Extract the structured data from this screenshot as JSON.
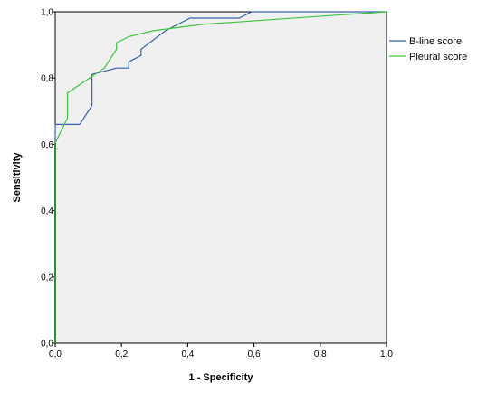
{
  "chart_data": {
    "type": "line",
    "title": "",
    "xlabel": "1 - Specificity",
    "ylabel": "Sensitivity",
    "xlim": [
      0,
      1
    ],
    "ylim": [
      0,
      1
    ],
    "xticks": [
      "0,0",
      "0,2",
      "0,4",
      "0,6",
      "0,8",
      "1,0"
    ],
    "yticks": [
      "0,0",
      "0,2",
      "0,4",
      "0,6",
      "0,8",
      "1,0"
    ],
    "grid": false,
    "legend_position": "top-right, outside plot",
    "plot_background": "#f0f0f0",
    "series": [
      {
        "name": "B-line score",
        "color": "#3a5fb0",
        "points": [
          [
            0,
            0
          ],
          [
            0,
            0.66
          ],
          [
            0.074,
            0.66
          ],
          [
            0.111,
            0.717
          ],
          [
            0.111,
            0.811
          ],
          [
            0.185,
            0.83
          ],
          [
            0.222,
            0.83
          ],
          [
            0.222,
            0.849
          ],
          [
            0.259,
            0.868
          ],
          [
            0.259,
            0.887
          ],
          [
            0.333,
            0.943
          ],
          [
            0.407,
            0.981
          ],
          [
            0.556,
            0.981
          ],
          [
            0.593,
            1.0
          ],
          [
            1.0,
            1.0
          ]
        ]
      },
      {
        "name": "Pleural score",
        "color": "#3ec43e",
        "points": [
          [
            0,
            0
          ],
          [
            0,
            0.604
          ],
          [
            0.037,
            0.679
          ],
          [
            0.037,
            0.755
          ],
          [
            0.148,
            0.83
          ],
          [
            0.185,
            0.887
          ],
          [
            0.185,
            0.906
          ],
          [
            0.222,
            0.925
          ],
          [
            0.296,
            0.943
          ],
          [
            0.444,
            0.962
          ],
          [
            1.0,
            1.0
          ]
        ]
      },
      {
        "name": "",
        "color": "#3a7a3a",
        "reference": true,
        "points": [
          [
            0,
            0
          ],
          [
            0,
            0
          ]
        ]
      }
    ]
  }
}
